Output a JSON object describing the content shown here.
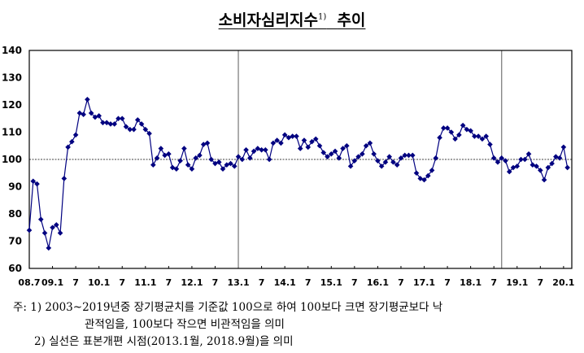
{
  "title": {
    "text": "소비자심리지수",
    "footnote_mark": "1)",
    "suffix": "추이"
  },
  "notes": {
    "prefix": "주: ",
    "note1_line1": "1) 2003~2019년중 장기평균치를 기준값 100으로 하여 100보다 크면 장기평균보다 낙",
    "note1_line2": "관적임을, 100보다 작으면 비관적임을 의미",
    "note2": "2) 실선은 표본개편 시점(2013.1월, 2018.9월)을 의미"
  },
  "colors": {
    "series": "#000080",
    "marker": "#000080",
    "axis": "#000000",
    "reference_line": "#000000",
    "vertical_lines": "#808080"
  },
  "chart_data": {
    "type": "line",
    "title": "소비자심리지수 추이",
    "xlabel": "",
    "ylabel": "",
    "ylim": [
      60,
      140
    ],
    "yticks": [
      60,
      70,
      80,
      90,
      100,
      110,
      120,
      130,
      140
    ],
    "x_tick_labels": [
      "08.7",
      "09.1",
      "7",
      "10.1",
      "7",
      "11.1",
      "7",
      "12.1",
      "7",
      "13.1",
      "7",
      "14.1",
      "7",
      "15.1",
      "7",
      "16.1",
      "7",
      "17.1",
      "7",
      "18.1",
      "7",
      "19.1",
      "7",
      "20.1"
    ],
    "x_start": "2008.7",
    "x_end": "2020.2",
    "frequency": "monthly",
    "reference_line": {
      "y": 100,
      "style": "dotted"
    },
    "vertical_lines": [
      {
        "x": "2013.1",
        "label": "표본개편"
      },
      {
        "x": "2018.9",
        "label": "표본개편"
      }
    ],
    "grid": false,
    "legend": null,
    "series": [
      {
        "name": "소비자심리지수",
        "marker": "diamond",
        "values": [
          74,
          92,
          91,
          78,
          73,
          67.5,
          75,
          76,
          73,
          93,
          104.5,
          106.5,
          109,
          117,
          116.5,
          122,
          117,
          115.5,
          116,
          113.5,
          113.5,
          113,
          113,
          115,
          115,
          112,
          111,
          111,
          114.5,
          113,
          111,
          109.5,
          98,
          100.5,
          104,
          101.5,
          102,
          97,
          96.5,
          99.5,
          104,
          98,
          96.5,
          100.5,
          101.5,
          105.5,
          106,
          100,
          98.5,
          99,
          96.5,
          98,
          98.5,
          97.5,
          101,
          100,
          103.5,
          100.5,
          103,
          104,
          103.5,
          103.5,
          100,
          106,
          107,
          106,
          109,
          108,
          108.5,
          108.5,
          104,
          107,
          104.5,
          106.5,
          107.5,
          105,
          102.5,
          101,
          102,
          103,
          100.5,
          104,
          105,
          97.5,
          99.5,
          101,
          102,
          105,
          106,
          102,
          99.5,
          97.5,
          99,
          101,
          99,
          98,
          100.5,
          101.5,
          101.5,
          101.5,
          95,
          93,
          92.5,
          94,
          96,
          100.5,
          108,
          111.5,
          111.5,
          110,
          107.5,
          109,
          112.5,
          111,
          110.5,
          108.5,
          108.5,
          107.5,
          108.5,
          105.5,
          100.5,
          99,
          100.5,
          99.5,
          95.5,
          97,
          97.5,
          100,
          100,
          102,
          98,
          97.5,
          96,
          92.5,
          97,
          98.5,
          101,
          100.5,
          104.5,
          97
        ]
      }
    ]
  }
}
